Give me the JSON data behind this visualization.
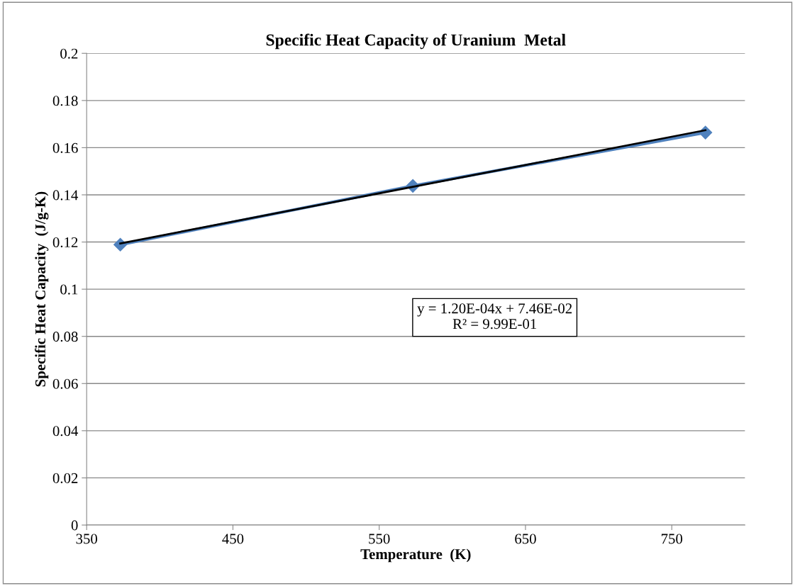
{
  "chart_data": {
    "type": "line",
    "title": "Specific Heat Capacity of Uranium  Metal",
    "xlabel": "Temperature  (K)",
    "ylabel": "Specific Heat Capacity  (J/g-K)",
    "x": [
      373,
      573,
      773
    ],
    "series": [
      {
        "color": "#4f81bd",
        "values": [
          0.1189,
          0.1438,
          0.1664
        ],
        "marker": "diamond"
      },
      {
        "color": "#000000",
        "x": [
          373,
          773
        ],
        "values": [
          0.1194,
          0.1674
        ],
        "marker": "none"
      }
    ],
    "xlim": [
      350,
      800
    ],
    "xticks": [
      350,
      450,
      550,
      650,
      750
    ],
    "ylim": [
      0,
      0.2
    ],
    "yticks": [
      0,
      0.02,
      0.04,
      0.06,
      0.08,
      0.1,
      0.12,
      0.14,
      0.16,
      0.18,
      0.2
    ],
    "grid": "y",
    "line_style": "solid",
    "annotations": [
      "y = 1.20E-04x + 7.46E-02\nR² = 9.99E-01"
    ]
  }
}
